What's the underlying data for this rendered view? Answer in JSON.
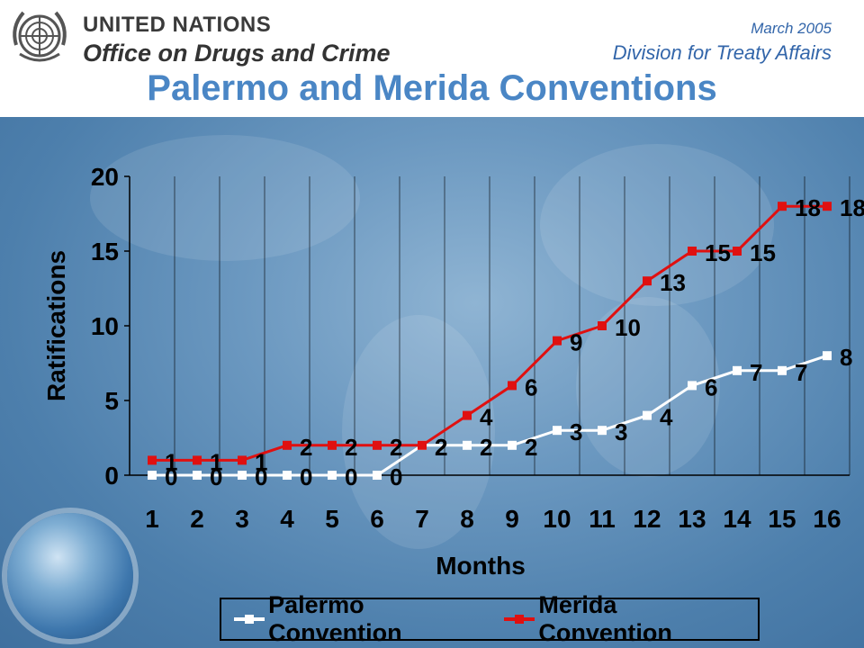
{
  "header": {
    "org_line1": "UNITED NATIONS",
    "org_line2": "Office on Drugs and Crime",
    "date": "March 2005",
    "division": "Division for Treaty Affairs",
    "title": "Palermo and Merida Conventions"
  },
  "colors": {
    "title": "#4a86c5",
    "header_text": "#3366aa",
    "palermo": "#ffffff",
    "merida": "#e01010"
  },
  "icons": {
    "logo": "un-emblem-icon",
    "globe": "globe-icon"
  },
  "chart_data": {
    "type": "line",
    "xlabel": "Months",
    "ylabel": "Ratifications",
    "categories": [
      "1",
      "2",
      "3",
      "4",
      "5",
      "6",
      "7",
      "8",
      "9",
      "10",
      "11",
      "12",
      "13",
      "14",
      "15",
      "16"
    ],
    "ylim": [
      0,
      20
    ],
    "yticks": [
      0,
      5,
      10,
      15,
      20
    ],
    "grid": "vertical",
    "legend_position": "bottom",
    "series": [
      {
        "name": "Palermo Convention",
        "color": "#ffffff",
        "values": [
          0,
          0,
          0,
          0,
          0,
          0,
          2,
          2,
          2,
          3,
          3,
          4,
          6,
          7,
          7,
          8
        ]
      },
      {
        "name": "Merida Convention",
        "color": "#e01010",
        "values": [
          1,
          1,
          1,
          2,
          2,
          2,
          2,
          4,
          6,
          9,
          10,
          13,
          15,
          15,
          18,
          18
        ]
      }
    ]
  }
}
